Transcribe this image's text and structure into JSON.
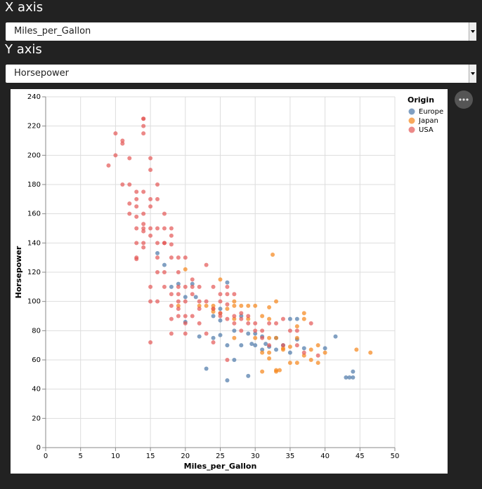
{
  "controls": [
    {
      "label": "X axis",
      "selected": "Miles_per_Gallon"
    },
    {
      "label": "Y axis",
      "selected": "Horsepower"
    }
  ],
  "chart_data": {
    "type": "scatter",
    "xlabel": "Miles_per_Gallon",
    "ylabel": "Horsepower",
    "legend_title": "Origin",
    "legend": "right",
    "xlim": [
      0,
      50
    ],
    "xticks": [
      0,
      5,
      10,
      15,
      20,
      25,
      30,
      35,
      40,
      45,
      50
    ],
    "ylim": [
      0,
      240
    ],
    "yticks": [
      0,
      20,
      40,
      60,
      80,
      100,
      120,
      140,
      160,
      180,
      200,
      220,
      240
    ],
    "grid": true,
    "series": [
      {
        "name": "Europe",
        "color": "#4c78a8",
        "x": [
          26,
          25,
          24,
          25,
          26,
          28,
          30,
          31,
          27,
          23,
          29,
          29.5,
          36,
          33,
          32,
          34,
          41.5,
          43,
          43.5,
          44,
          44,
          36,
          35,
          29,
          21,
          19,
          18,
          17,
          16,
          20,
          21.5,
          24,
          25,
          26,
          22,
          20,
          27,
          30,
          28,
          35,
          37,
          40,
          31,
          33,
          31.5
        ],
        "values": [
          46,
          87,
          90,
          95,
          113,
          90,
          70,
          76,
          60,
          54,
          49,
          71,
          74,
          75,
          69,
          70,
          76,
          48,
          48,
          48,
          52,
          88,
          88,
          78,
          112,
          112,
          110,
          125,
          133,
          103,
          103,
          75,
          77,
          70,
          76,
          86,
          80,
          78,
          70,
          65,
          68,
          68,
          67,
          67,
          71
        ]
      },
      {
        "name": "Japan",
        "color": "#f58518",
        "x": [
          24,
          27,
          24,
          25,
          31,
          32,
          32,
          35,
          33,
          33,
          31,
          32,
          34,
          36,
          37,
          38,
          39,
          40,
          44.5,
          46.5,
          33,
          32.5,
          28,
          29,
          27,
          24,
          27,
          26,
          23,
          22,
          20,
          19,
          25,
          27,
          30,
          32,
          33,
          34,
          35,
          36,
          37,
          38,
          39,
          32,
          29,
          30,
          33.5,
          36,
          31,
          37
        ],
        "values": [
          95,
          88,
          97,
          115,
          65,
          65,
          61,
          69,
          53,
          52,
          52,
          75,
          67,
          58,
          92,
          60,
          58,
          65,
          67,
          65,
          100,
          132,
          97,
          97,
          97,
          93,
          100,
          95,
          97,
          97,
          122,
          97,
          92,
          75,
          75,
          96,
          75,
          68,
          58,
          75,
          88,
          67,
          70,
          88,
          88,
          97,
          53,
          83,
          90,
          63
        ]
      },
      {
        "name": "USA",
        "color": "#e45756",
        "x": [
          18,
          15,
          18,
          16,
          17,
          15,
          14,
          14,
          14,
          15,
          15,
          14,
          15,
          14,
          9,
          10,
          10,
          11,
          11,
          13,
          12,
          13,
          13,
          14,
          14,
          14,
          13,
          12,
          13,
          14,
          13,
          12,
          11,
          12,
          13,
          14,
          15,
          15,
          15,
          16,
          16,
          16,
          17,
          17,
          18,
          18,
          18,
          19,
          19,
          19,
          20,
          20,
          20,
          21,
          21,
          21,
          22,
          22,
          22,
          23,
          24,
          25,
          25,
          26,
          26,
          27,
          27,
          28,
          28,
          29,
          30,
          31,
          32,
          34,
          36,
          38,
          39,
          26,
          28,
          24,
          23,
          20,
          19,
          18,
          17,
          17,
          18,
          19,
          20,
          16,
          16,
          15,
          14,
          13,
          16,
          17,
          18,
          19,
          20,
          19,
          21,
          22,
          24,
          25,
          26,
          27,
          29,
          30,
          31,
          32,
          33,
          34,
          35,
          36,
          37,
          25,
          26,
          23
        ],
        "values": [
          130,
          165,
          150,
          150,
          140,
          198,
          220,
          215,
          225,
          190,
          170,
          160,
          150,
          225,
          193,
          215,
          200,
          210,
          208,
          175,
          180,
          170,
          165,
          150,
          175,
          153,
          150,
          160,
          158,
          140,
          130,
          167,
          180,
          198,
          140,
          137,
          110,
          72,
          100,
          100,
          180,
          170,
          120,
          110,
          105,
          88,
          97,
          110,
          100,
          95,
          110,
          90,
          85,
          110,
          105,
          115,
          100,
          95,
          110,
          125,
          110,
          100,
          90,
          105,
          110,
          105,
          90,
          92,
          88,
          90,
          85,
          80,
          85,
          88,
          80,
          85,
          63,
          60,
          80,
          72,
          78,
          78,
          90,
          78,
          150,
          140,
          139,
          130,
          130,
          140,
          130,
          145,
          148,
          129,
          120,
          160,
          145,
          120,
          100,
          105,
          90,
          85,
          95,
          92,
          88,
          85,
          85,
          80,
          75,
          70,
          85,
          70,
          80,
          70,
          65,
          105,
          98,
          100
        ]
      }
    ]
  }
}
